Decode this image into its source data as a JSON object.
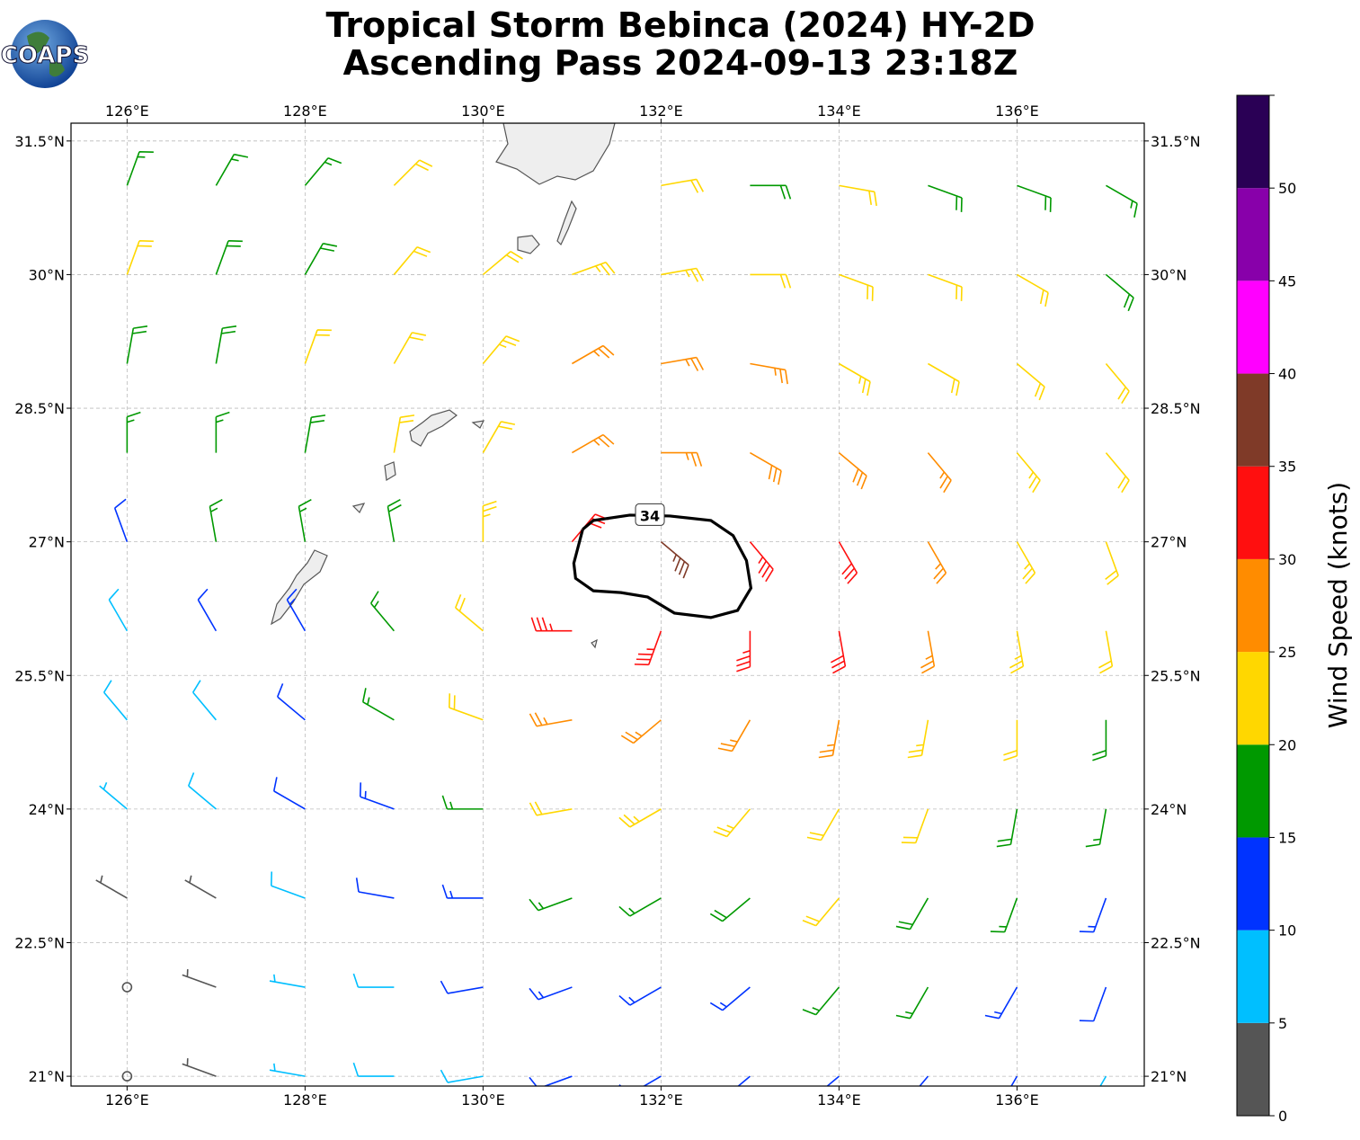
{
  "chart_data": {
    "type": "barbs",
    "title": "Tropical Storm Bebinca (2024) HY-2D",
    "subtitle": "Ascending Pass 2024-09-13 23:18Z",
    "logo_text": "COAPS",
    "xlim": [
      125.37,
      137.43
    ],
    "ylim": [
      20.89,
      31.7
    ],
    "grid": true,
    "xticks": [
      {
        "value": 126,
        "label": "126°E"
      },
      {
        "value": 128,
        "label": "128°E"
      },
      {
        "value": 130,
        "label": "130°E"
      },
      {
        "value": 132,
        "label": "132°E"
      },
      {
        "value": 134,
        "label": "134°E"
      },
      {
        "value": 136,
        "label": "136°E"
      }
    ],
    "yticks": [
      {
        "value": 21,
        "label": "21°N"
      },
      {
        "value": 22.5,
        "label": "22.5°N"
      },
      {
        "value": 24,
        "label": "24°N"
      },
      {
        "value": 25.5,
        "label": "25.5°N"
      },
      {
        "value": 27,
        "label": "27°N"
      },
      {
        "value": 28.5,
        "label": "28.5°N"
      },
      {
        "value": 30,
        "label": "30°N"
      },
      {
        "value": 31.5,
        "label": "31.5°N"
      }
    ],
    "lon": [
      126,
      127,
      128,
      129,
      130,
      131,
      132,
      133,
      134,
      135,
      136,
      137
    ],
    "lat": [
      31,
      30,
      29,
      28,
      27,
      26,
      25,
      24,
      23,
      22,
      21
    ],
    "speed": [
      [
        17,
        17,
        17,
        20,
        null,
        null,
        22,
        19,
        22,
        19,
        18,
        17
      ],
      [
        22,
        18,
        18,
        20,
        22,
        24,
        23,
        22,
        21,
        20,
        20,
        18
      ],
      [
        18,
        19,
        22,
        22,
        24,
        26,
        26,
        26,
        24,
        22,
        22,
        21
      ],
      [
        17,
        17,
        18,
        20,
        22,
        26,
        27,
        28,
        28,
        26,
        24,
        22
      ],
      [
        12,
        15,
        17,
        19,
        23,
        30,
        36,
        34,
        31,
        27,
        24,
        21
      ],
      [
        9,
        11,
        13,
        17,
        22,
        33,
        34,
        33,
        30,
        26,
        23,
        21
      ],
      [
        8,
        9,
        12,
        15,
        20,
        25,
        27,
        27,
        25,
        23,
        20,
        18
      ],
      [
        7,
        8,
        10,
        13,
        16,
        21,
        23,
        23,
        22,
        20,
        18,
        16
      ],
      [
        3,
        4,
        8,
        11,
        13,
        15,
        17,
        19,
        20,
        19,
        17,
        14
      ],
      [
        2,
        3,
        6,
        9,
        11,
        13,
        14,
        14,
        16,
        16,
        14,
        12
      ],
      [
        2,
        3,
        6,
        8,
        9,
        10,
        11,
        12,
        13,
        13,
        11,
        9
      ]
    ],
    "direction": [
      [
        20,
        30,
        40,
        45,
        null,
        null,
        80,
        90,
        100,
        110,
        110,
        120
      ],
      [
        20,
        20,
        30,
        40,
        50,
        70,
        80,
        90,
        110,
        110,
        120,
        130
      ],
      [
        10,
        10,
        20,
        30,
        40,
        60,
        80,
        100,
        120,
        120,
        130,
        140
      ],
      [
        360,
        360,
        10,
        10,
        30,
        60,
        90,
        120,
        130,
        140,
        140,
        140
      ],
      [
        340,
        350,
        350,
        350,
        360,
        40,
        130,
        140,
        150,
        150,
        150,
        160
      ],
      [
        330,
        330,
        330,
        320,
        310,
        270,
        200,
        180,
        170,
        170,
        170,
        170
      ],
      [
        320,
        320,
        310,
        300,
        290,
        260,
        230,
        210,
        190,
        190,
        180,
        180
      ],
      [
        310,
        310,
        300,
        290,
        270,
        260,
        240,
        220,
        210,
        200,
        190,
        190
      ],
      [
        300,
        300,
        290,
        280,
        270,
        250,
        240,
        230,
        220,
        210,
        200,
        200
      ],
      [
        300,
        290,
        280,
        270,
        260,
        250,
        240,
        230,
        220,
        210,
        210,
        200
      ],
      [
        290,
        290,
        280,
        270,
        260,
        250,
        240,
        230,
        230,
        220,
        210,
        210
      ]
    ],
    "contour": {
      "level": 34,
      "color": "#000000",
      "lon": [
        131.12,
        131.24,
        131.65,
        132.1,
        132.56,
        132.81,
        132.96,
        133.01,
        132.86,
        132.56,
        132.15,
        131.85,
        131.55,
        131.24,
        131.04,
        131.02,
        131.12
      ],
      "lat": [
        27.14,
        27.24,
        27.3,
        27.29,
        27.24,
        27.07,
        26.79,
        26.48,
        26.23,
        26.15,
        26.2,
        26.38,
        26.43,
        26.45,
        26.59,
        26.76,
        27.14
      ]
    },
    "colorbar": {
      "label": "Wind Speed (knots)",
      "bounds": [
        0,
        5,
        10,
        15,
        20,
        25,
        30,
        35,
        40,
        45,
        50,
        55
      ],
      "ticks": [
        0,
        5,
        10,
        15,
        20,
        25,
        30,
        35,
        40,
        45,
        50
      ],
      "colors": [
        "#555555",
        "#00bfff",
        "#0033ff",
        "#009900",
        "#ffd700",
        "#ff8c00",
        "#ff0f0f",
        "#7f3a28",
        "#ff00ff",
        "#8800aa",
        "#2a0055"
      ]
    }
  }
}
